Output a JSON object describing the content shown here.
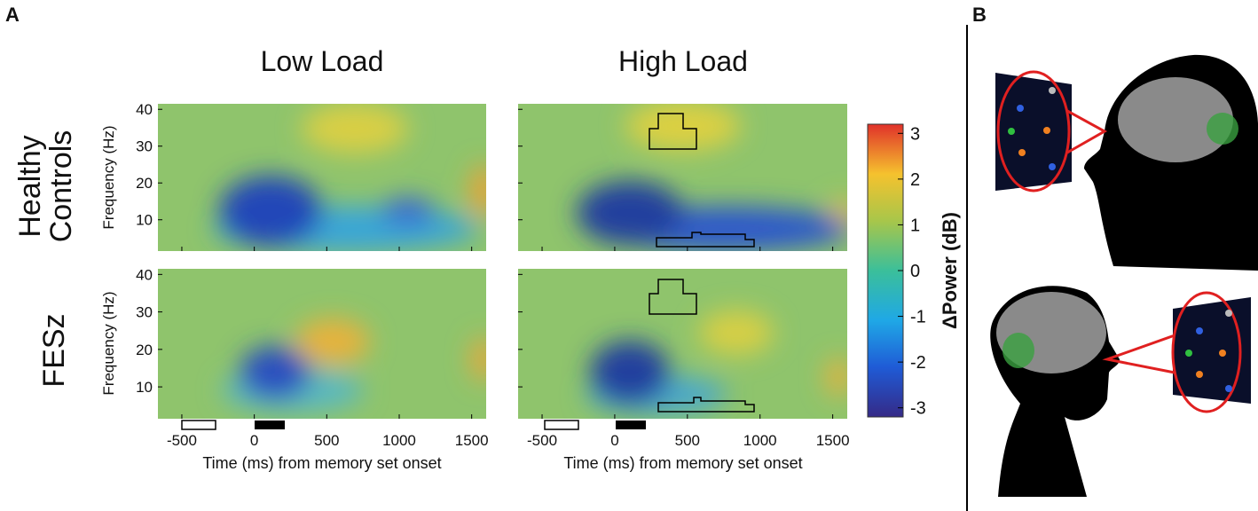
{
  "panels": {
    "a": "A",
    "b": "B"
  },
  "columns": [
    "Low Load",
    "High Load"
  ],
  "rows": [
    [
      "Healthy",
      "Controls"
    ],
    [
      "FESz"
    ]
  ],
  "y_axis_label": "Frequency (Hz)",
  "x_axis_label": "Time (ms) from memory set onset",
  "xlim": [
    -665,
    1600
  ],
  "xticks": [
    -500,
    0,
    500,
    1000,
    1500
  ],
  "ylim": [
    1.5,
    41.5
  ],
  "yticks": [
    10,
    20,
    30,
    40
  ],
  "colorbar": {
    "label": "ΔPower (dB)",
    "lim": [
      -3.2,
      3.2
    ],
    "ticks": [
      -3,
      -2,
      -1,
      0,
      1,
      2,
      3
    ]
  }
}
